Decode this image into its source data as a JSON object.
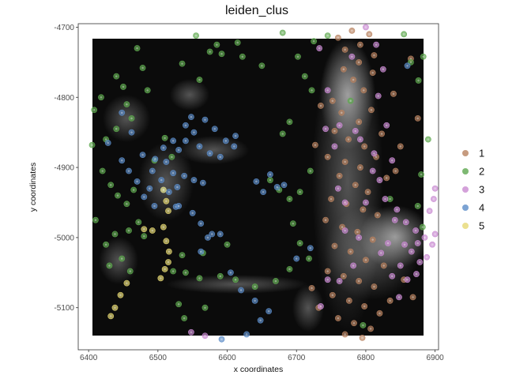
{
  "chart_data": {
    "type": "scatter",
    "title": "leiden_clus",
    "xlabel": "x coordinates",
    "ylabel": "y coordinates",
    "xlim": [
      6385,
      6905
    ],
    "ylim": [
      -5160,
      -4695
    ],
    "x_ticks": [
      "6400",
      "6500",
      "6600",
      "6700",
      "6800",
      "6900"
    ],
    "x_tick_values": [
      6400,
      6500,
      6600,
      6700,
      6800,
      6900
    ],
    "y_ticks": [
      "-4700",
      "-4800",
      "-4900",
      "-5000",
      "-5100"
    ],
    "y_tick_values": [
      -4700,
      -4800,
      -4900,
      -5000,
      -5100
    ],
    "grid": false,
    "legend_position": "right",
    "background_image": "grayscale tissue image, x 6400–6900, y -5150 to -4700",
    "series": [
      {
        "name": "1",
        "color": "#b8825f",
        "points": [
          [
            6760,
            -4715
          ],
          [
            6770,
            -4732
          ],
          [
            6780,
            -4705
          ],
          [
            6792,
            -4725
          ],
          [
            6805,
            -4710
          ],
          [
            6812,
            -4740
          ],
          [
            6768,
            -4760
          ],
          [
            6782,
            -4775
          ],
          [
            6797,
            -4790
          ],
          [
            6752,
            -4805
          ],
          [
            6765,
            -4822
          ],
          [
            6790,
            -4835
          ],
          [
            6808,
            -4818
          ],
          [
            6755,
            -4848
          ],
          [
            6775,
            -4860
          ],
          [
            6798,
            -4870
          ],
          [
            6823,
            -4852
          ],
          [
            6745,
            -4885
          ],
          [
            6770,
            -4892
          ],
          [
            6792,
            -4900
          ],
          [
            6815,
            -4885
          ],
          [
            6762,
            -4912
          ],
          [
            6785,
            -4925
          ],
          [
            6803,
            -4935
          ],
          [
            6830,
            -4915
          ],
          [
            6750,
            -4945
          ],
          [
            6772,
            -4952
          ],
          [
            6796,
            -4960
          ],
          [
            6817,
            -4968
          ],
          [
            6742,
            -4975
          ],
          [
            6766,
            -4985
          ],
          [
            6788,
            -4992
          ],
          [
            6810,
            -5003
          ],
          [
            6755,
            -5012
          ],
          [
            6778,
            -5020
          ],
          [
            6800,
            -5032
          ],
          [
            6826,
            -5040
          ],
          [
            6745,
            -5048
          ],
          [
            6768,
            -5055
          ],
          [
            6790,
            -5062
          ],
          [
            6812,
            -5070
          ],
          [
            6752,
            -5082
          ],
          [
            6776,
            -5090
          ],
          [
            6798,
            -5098
          ],
          [
            6820,
            -5108
          ],
          [
            6760,
            -5115
          ],
          [
            6783,
            -5122
          ],
          [
            6807,
            -5130
          ],
          [
            6770,
            -5138
          ],
          [
            6795,
            -5143
          ],
          [
            6732,
            -5100
          ],
          [
            6722,
            -5072
          ],
          [
            6727,
            -4868
          ],
          [
            6735,
            -4812
          ],
          [
            6790,
            -4750
          ],
          [
            6810,
            -4765
          ],
          [
            6850,
            -4870
          ],
          [
            6843,
            -4905
          ],
          [
            6865,
            -4745
          ],
          [
            6840,
            -4795
          ],
          [
            6875,
            -4830
          ],
          [
            6855,
            -5060
          ],
          [
            6835,
            -5090
          ],
          [
            6868,
            -5085
          ]
        ]
      },
      {
        "name": "2",
        "color": "#5ea84f",
        "points": [
          [
            6405,
            -4868
          ],
          [
            6408,
            -4818
          ],
          [
            6418,
            -4800
          ],
          [
            6425,
            -4860
          ],
          [
            6440,
            -4770
          ],
          [
            6450,
            -4785
          ],
          [
            6455,
            -4810
          ],
          [
            6470,
            -4730
          ],
          [
            6478,
            -4758
          ],
          [
            6485,
            -4790
          ],
          [
            6462,
            -4830
          ],
          [
            6440,
            -4845
          ],
          [
            6432,
            -4925
          ],
          [
            6442,
            -4940
          ],
          [
            6455,
            -4952
          ],
          [
            6465,
            -4932
          ],
          [
            6472,
            -4978
          ],
          [
            6480,
            -4998
          ],
          [
            6458,
            -4990
          ],
          [
            6438,
            -4995
          ],
          [
            6425,
            -5010
          ],
          [
            6430,
            -5040
          ],
          [
            6448,
            -5030
          ],
          [
            6460,
            -5048
          ],
          [
            6495,
            -4890
          ],
          [
            6510,
            -4858
          ],
          [
            6520,
            -4885
          ],
          [
            6535,
            -4752
          ],
          [
            6560,
            -4775
          ],
          [
            6555,
            -4712
          ],
          [
            6575,
            -4735
          ],
          [
            6585,
            -4725
          ],
          [
            6592,
            -4738
          ],
          [
            6615,
            -4722
          ],
          [
            6622,
            -4742
          ],
          [
            6650,
            -4755
          ],
          [
            6680,
            -4708
          ],
          [
            6702,
            -4742
          ],
          [
            6712,
            -4770
          ],
          [
            6722,
            -4790
          ],
          [
            6690,
            -4835
          ],
          [
            6680,
            -4852
          ],
          [
            6662,
            -4918
          ],
          [
            6675,
            -4932
          ],
          [
            6690,
            -4945
          ],
          [
            6705,
            -4935
          ],
          [
            6720,
            -4905
          ],
          [
            6695,
            -4980
          ],
          [
            6705,
            -5008
          ],
          [
            6718,
            -5030
          ],
          [
            6690,
            -5045
          ],
          [
            6670,
            -5062
          ],
          [
            6640,
            -5070
          ],
          [
            6612,
            -5060
          ],
          [
            6590,
            -5055
          ],
          [
            6560,
            -5058
          ],
          [
            6540,
            -5050
          ],
          [
            6522,
            -5048
          ],
          [
            6535,
            -5025
          ],
          [
            6565,
            -5022
          ],
          [
            6600,
            -5010
          ],
          [
            6538,
            -5115
          ],
          [
            6568,
            -5100
          ],
          [
            6530,
            -5095
          ],
          [
            6890,
            -4860
          ],
          [
            6880,
            -4910
          ],
          [
            6875,
            -4955
          ],
          [
            6882,
            -4985
          ],
          [
            6865,
            -4750
          ],
          [
            6855,
            -4710
          ],
          [
            6876,
            -4776
          ],
          [
            6883,
            -4742
          ],
          [
            6725,
            -4720
          ],
          [
            6745,
            -4712
          ],
          [
            6778,
            -4805
          ],
          [
            6835,
            -4945
          ],
          [
            6796,
            -5125
          ],
          [
            6410,
            -4975
          ],
          [
            6420,
            -4905
          ]
        ]
      },
      {
        "name": "3",
        "color": "#c98ad1",
        "points": [
          [
            6800,
            -4700
          ],
          [
            6815,
            -4725
          ],
          [
            6825,
            -4760
          ],
          [
            6780,
            -4742
          ],
          [
            6818,
            -4798
          ],
          [
            6830,
            -4840
          ],
          [
            6812,
            -4880
          ],
          [
            6838,
            -4890
          ],
          [
            6828,
            -4945
          ],
          [
            6845,
            -4960
          ],
          [
            6858,
            -4978
          ],
          [
            6872,
            -4990
          ],
          [
            6885,
            -5000
          ],
          [
            6896,
            -5010
          ],
          [
            6900,
            -4995
          ],
          [
            6892,
            -4962
          ],
          [
            6900,
            -4930
          ],
          [
            6898,
            -4945
          ],
          [
            6866,
            -5020
          ],
          [
            6878,
            -5035
          ],
          [
            6850,
            -5040
          ],
          [
            6838,
            -5055
          ],
          [
            6832,
            -5008
          ],
          [
            6822,
            -5022
          ],
          [
            6848,
            -5085
          ],
          [
            6860,
            -5060
          ],
          [
            6888,
            -5028
          ],
          [
            6873,
            -5052
          ],
          [
            6782,
            -5040
          ],
          [
            6790,
            -5000
          ],
          [
            6770,
            -4950
          ],
          [
            6760,
            -4930
          ],
          [
            6745,
            -5060
          ],
          [
            6735,
            -5098
          ],
          [
            6762,
            -5062
          ],
          [
            6770,
            -4990
          ],
          [
            6755,
            -4870
          ],
          [
            6742,
            -4845
          ],
          [
            6762,
            -4840
          ],
          [
            6785,
            -4848
          ],
          [
            6792,
            -4860
          ],
          [
            6810,
            -4905
          ],
          [
            6820,
            -4918
          ],
          [
            6800,
            -4950
          ],
          [
            6842,
            -4975
          ],
          [
            6856,
            -5010
          ],
          [
            6875,
            -5008
          ],
          [
            6548,
            -5135
          ],
          [
            6568,
            -5140
          ],
          [
            6745,
            -4790
          ],
          [
            6733,
            -4730
          ]
        ]
      },
      {
        "name": "4",
        "color": "#5b8cc8",
        "points": [
          [
            6428,
            -4865
          ],
          [
            6448,
            -4822
          ],
          [
            6462,
            -4850
          ],
          [
            6478,
            -4882
          ],
          [
            6492,
            -4905
          ],
          [
            6505,
            -4918
          ],
          [
            6516,
            -4935
          ],
          [
            6526,
            -4956
          ],
          [
            6495,
            -4955
          ],
          [
            6480,
            -4942
          ],
          [
            6512,
            -4892
          ],
          [
            6530,
            -4875
          ],
          [
            6540,
            -4862
          ],
          [
            6552,
            -4850
          ],
          [
            6560,
            -4870
          ],
          [
            6575,
            -4880
          ],
          [
            6590,
            -4885
          ],
          [
            6610,
            -4870
          ],
          [
            6612,
            -4855
          ],
          [
            6598,
            -4862
          ],
          [
            6582,
            -4845
          ],
          [
            6568,
            -4832
          ],
          [
            6548,
            -4828
          ],
          [
            6540,
            -4840
          ],
          [
            6522,
            -4862
          ],
          [
            6508,
            -4872
          ],
          [
            6496,
            -4888
          ],
          [
            6522,
            -4908
          ],
          [
            6538,
            -4912
          ],
          [
            6552,
            -4918
          ],
          [
            6565,
            -4922
          ],
          [
            6528,
            -4928
          ],
          [
            6508,
            -4932
          ],
          [
            6488,
            -4930
          ],
          [
            6470,
            -4920
          ],
          [
            6458,
            -4905
          ],
          [
            6448,
            -4890
          ],
          [
            6530,
            -4955
          ],
          [
            6550,
            -4965
          ],
          [
            6562,
            -4980
          ],
          [
            6572,
            -5000
          ],
          [
            6562,
            -5020
          ],
          [
            6578,
            -4995
          ],
          [
            6590,
            -4995
          ],
          [
            6605,
            -5050
          ],
          [
            6620,
            -5075
          ],
          [
            6640,
            -5090
          ],
          [
            6660,
            -5105
          ],
          [
            6648,
            -5118
          ],
          [
            6628,
            -5138
          ],
          [
            6592,
            -5145
          ],
          [
            6642,
            -4920
          ],
          [
            6652,
            -4935
          ],
          [
            6662,
            -4910
          ],
          [
            6672,
            -4928
          ],
          [
            6682,
            -4925
          ],
          [
            6720,
            -5015
          ],
          [
            6700,
            -5030
          ],
          [
            6860,
            -4755
          ]
        ]
      },
      {
        "name": "5",
        "color": "#e6d873",
        "points": [
          [
            6508,
            -4932
          ],
          [
            6512,
            -4948
          ],
          [
            6515,
            -4962
          ],
          [
            6508,
            -4985
          ],
          [
            6512,
            -5005
          ],
          [
            6516,
            -5020
          ],
          [
            6515,
            -5035
          ],
          [
            6510,
            -5045
          ],
          [
            6504,
            -5058
          ],
          [
            6480,
            -4988
          ],
          [
            6492,
            -4990
          ],
          [
            6455,
            -5065
          ],
          [
            6446,
            -5082
          ],
          [
            6438,
            -5100
          ],
          [
            6432,
            -5112
          ]
        ]
      }
    ]
  }
}
